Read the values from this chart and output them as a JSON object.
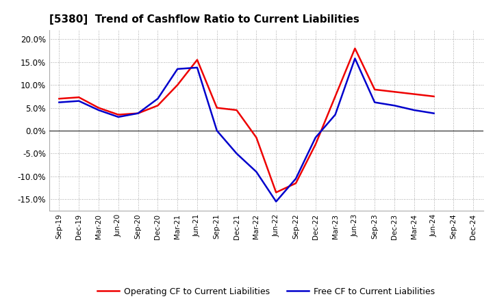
{
  "title": "[5380]  Trend of Cashflow Ratio to Current Liabilities",
  "x_labels": [
    "Sep-19",
    "Dec-19",
    "Mar-20",
    "Jun-20",
    "Sep-20",
    "Dec-20",
    "Mar-21",
    "Jun-21",
    "Sep-21",
    "Dec-21",
    "Mar-22",
    "Jun-22",
    "Sep-22",
    "Dec-22",
    "Mar-23",
    "Jun-23",
    "Sep-23",
    "Dec-23",
    "Mar-24",
    "Jun-24",
    "Sep-24",
    "Dec-24"
  ],
  "operating_cf": [
    7.0,
    7.3,
    5.0,
    3.5,
    3.8,
    5.5,
    10.0,
    15.5,
    5.0,
    4.5,
    -1.5,
    -13.5,
    -11.5,
    -3.0,
    7.5,
    18.0,
    9.0,
    8.5,
    8.0,
    7.5,
    null,
    null
  ],
  "free_cf": [
    6.2,
    6.5,
    4.5,
    3.0,
    3.8,
    7.0,
    13.5,
    13.8,
    0.0,
    -5.0,
    -9.0,
    -15.5,
    -10.5,
    -1.5,
    3.5,
    15.8,
    6.2,
    5.5,
    4.5,
    3.8,
    null,
    null
  ],
  "ylim": [
    -17.5,
    22.0
  ],
  "yticks": [
    -15.0,
    -10.0,
    -5.0,
    0.0,
    5.0,
    10.0,
    15.0,
    20.0
  ],
  "operating_color": "#EE0000",
  "free_color": "#0000CC",
  "background_color": "#FFFFFF",
  "plot_bg_color": "#FFFFFF",
  "grid_color": "#888888",
  "legend_op": "Operating CF to Current Liabilities",
  "legend_free": "Free CF to Current Liabilities"
}
